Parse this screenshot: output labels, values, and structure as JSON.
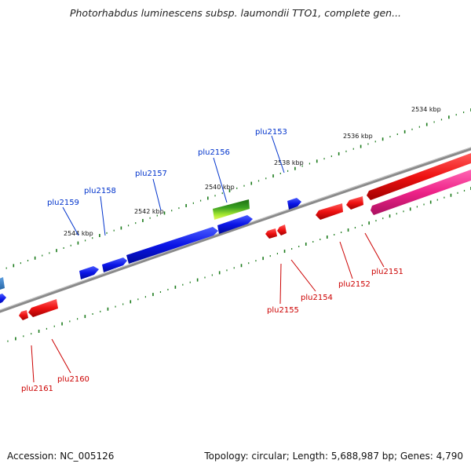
{
  "title": "Photorhabdus luminescens subsp. laumondii TTO1, complete gen...",
  "footer": {
    "accession": "Accession: NC_005126",
    "summary": "Topology: circular; Length: 5,688,987 bp; Genes: 4,790"
  },
  "scale_labels": [
    "2534 kbp",
    "2536 kbp",
    "2538 kbp",
    "2540 kbp",
    "2542 kbp",
    "2544 kbp"
  ],
  "genes_forward": [
    {
      "name": "plu2153",
      "color": "#0033cc"
    },
    {
      "name": "plu2156",
      "color": "#0033cc"
    },
    {
      "name": "plu2157",
      "color": "#0033cc"
    },
    {
      "name": "plu2158",
      "color": "#0033cc"
    },
    {
      "name": "plu2159",
      "color": "#0033cc"
    }
  ],
  "genes_reverse": [
    {
      "name": "plu2151",
      "color": "#cc0000"
    },
    {
      "name": "plu2152",
      "color": "#cc0000"
    },
    {
      "name": "plu2154",
      "color": "#cc0000"
    },
    {
      "name": "plu2155",
      "color": "#cc0000"
    },
    {
      "name": "plu2160",
      "color": "#cc0000"
    },
    {
      "name": "plu2161",
      "color": "#cc0000"
    }
  ],
  "colors": {
    "forward_strand": "#0a14e6",
    "reverse_strand": "#ee1111",
    "rna_gene": "#ee2288",
    "highlight_gene": "#2a8a1a",
    "backbone": "#777777",
    "tick": "#1a7a1a"
  }
}
